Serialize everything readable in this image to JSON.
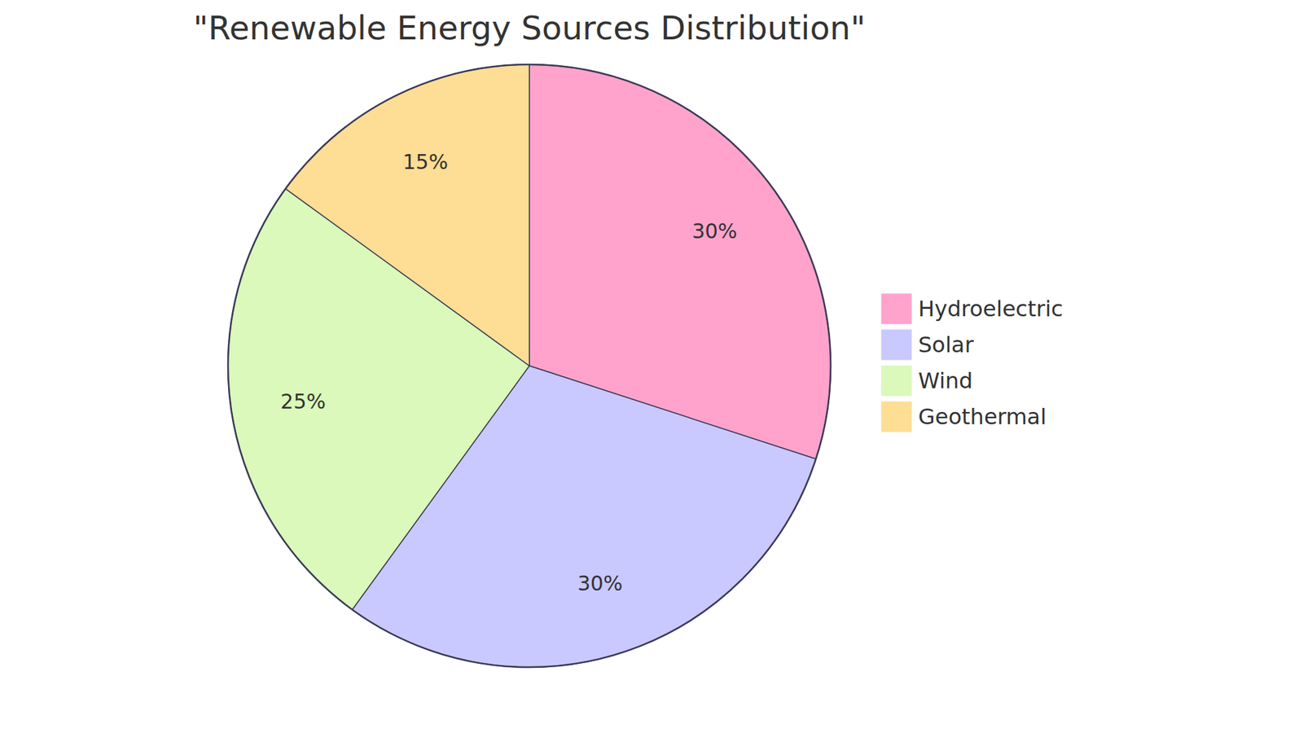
{
  "chart_data": {
    "type": "pie",
    "title": "\"Renewable Energy Sources Distribution\"",
    "categories": [
      "Hydroelectric",
      "Solar",
      "Wind",
      "Geothermal"
    ],
    "values": [
      30,
      30,
      25,
      15
    ],
    "value_labels": [
      "30%",
      "30%",
      "25%",
      "15%"
    ],
    "colors": [
      "#ffa3cc",
      "#c9c9ff",
      "#daf9ba",
      "#fedd94"
    ],
    "data_labels": true,
    "legend": "right"
  }
}
